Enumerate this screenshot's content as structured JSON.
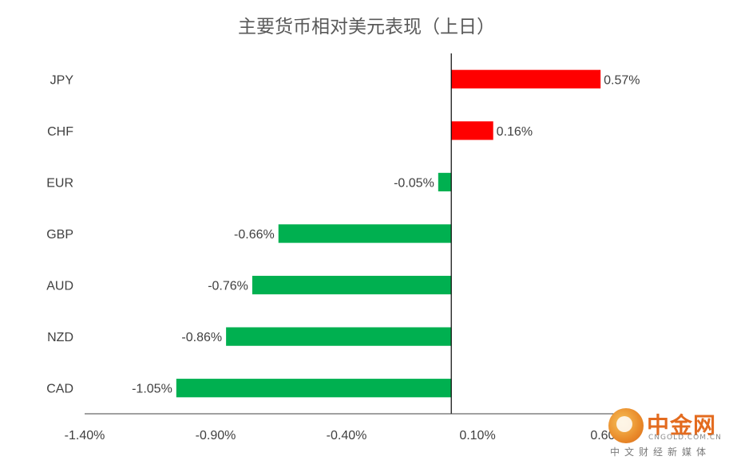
{
  "chart_data": {
    "type": "bar",
    "orientation": "horizontal",
    "title": "主要货币相对美元表现（上日）",
    "categories": [
      "JPY",
      "CHF",
      "EUR",
      "GBP",
      "AUD",
      "NZD",
      "CAD"
    ],
    "values": [
      0.57,
      0.16,
      -0.05,
      -0.66,
      -0.76,
      -0.86,
      -1.05
    ],
    "data_labels": [
      "0.57%",
      "0.16%",
      "-0.05%",
      "-0.66%",
      "-0.76%",
      "-0.86%",
      "-1.05%"
    ],
    "xlim": [
      -1.4,
      0.6
    ],
    "xticks": [
      -1.4,
      -0.9,
      -0.4,
      0.1,
      0.6
    ],
    "xtick_labels": [
      "-1.40%",
      "-0.90%",
      "-0.40%",
      "0.10%",
      "0.60%"
    ],
    "positive_color": "#ff0000",
    "negative_color": "#00b050",
    "grid": false,
    "legend": "none"
  },
  "watermark": {
    "brand": "中金网",
    "url": "CNGOLD.COM.CN",
    "tagline": "中文财经新媒体"
  }
}
